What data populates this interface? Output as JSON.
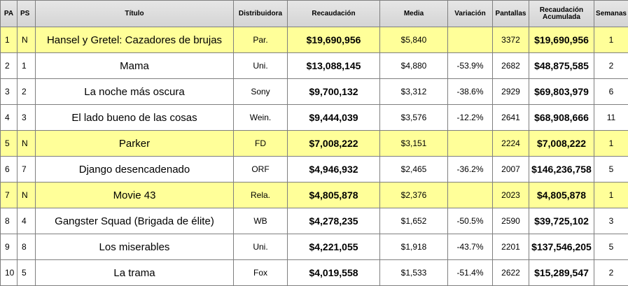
{
  "headers": {
    "pa": "PA",
    "ps": "PS",
    "titulo": "Título",
    "distribuidora": "Distribuidora",
    "recaudacion": "Recaudación",
    "media": "Media",
    "variacion": "Variación",
    "pantallas": "Pantallas",
    "acumulada": "Recaudación Acumulada",
    "semanas": "Semanas"
  },
  "highlight_color": "#ffff99",
  "rows": [
    {
      "pa": "1",
      "ps": "N",
      "title": "Hansel y Gretel: Cazadores de brujas",
      "dist": "Par.",
      "gross": "$19,690,956",
      "avg": "$5,840",
      "change": "",
      "screens": "3372",
      "total": "$19,690,956",
      "weeks": "1",
      "new": true
    },
    {
      "pa": "2",
      "ps": "1",
      "title": "Mama",
      "dist": "Uni.",
      "gross": "$13,088,145",
      "avg": "$4,880",
      "change": "-53.9%",
      "screens": "2682",
      "total": "$48,875,585",
      "weeks": "2",
      "new": false
    },
    {
      "pa": "3",
      "ps": "2",
      "title": "La noche más oscura",
      "dist": "Sony",
      "gross": "$9,700,132",
      "avg": "$3,312",
      "change": "-38.6%",
      "screens": "2929",
      "total": "$69,803,979",
      "weeks": "6",
      "new": false
    },
    {
      "pa": "4",
      "ps": "3",
      "title": "El lado bueno de las cosas",
      "dist": "Wein.",
      "gross": "$9,444,039",
      "avg": "$3,576",
      "change": "-12.2%",
      "screens": "2641",
      "total": "$68,908,666",
      "weeks": "11",
      "new": false
    },
    {
      "pa": "5",
      "ps": "N",
      "title": "Parker",
      "dist": "FD",
      "gross": "$7,008,222",
      "avg": "$3,151",
      "change": "",
      "screens": "2224",
      "total": "$7,008,222",
      "weeks": "1",
      "new": true
    },
    {
      "pa": "6",
      "ps": "7",
      "title": "Django desencadenado",
      "dist": "ORF",
      "gross": "$4,946,932",
      "avg": "$2,465",
      "change": "-36.2%",
      "screens": "2007",
      "total": "$146,236,758",
      "weeks": "5",
      "new": false
    },
    {
      "pa": "7",
      "ps": "N",
      "title": "Movie 43",
      "dist": "Rela.",
      "gross": "$4,805,878",
      "avg": "$2,376",
      "change": "",
      "screens": "2023",
      "total": "$4,805,878",
      "weeks": "1",
      "new": true
    },
    {
      "pa": "8",
      "ps": "4",
      "title": "Gangster Squad (Brigada de élite)",
      "dist": "WB",
      "gross": "$4,278,235",
      "avg": "$1,652",
      "change": "-50.5%",
      "screens": "2590",
      "total": "$39,725,102",
      "weeks": "3",
      "new": false
    },
    {
      "pa": "9",
      "ps": "8",
      "title": "Los miserables",
      "dist": "Uni.",
      "gross": "$4,221,055",
      "avg": "$1,918",
      "change": "-43.7%",
      "screens": "2201",
      "total": "$137,546,205",
      "weeks": "5",
      "new": false
    },
    {
      "pa": "10",
      "ps": "5",
      "title": "La trama",
      "dist": "Fox",
      "gross": "$4,019,558",
      "avg": "$1,533",
      "change": "-51.4%",
      "screens": "2622",
      "total": "$15,289,547",
      "weeks": "2",
      "new": false
    }
  ]
}
